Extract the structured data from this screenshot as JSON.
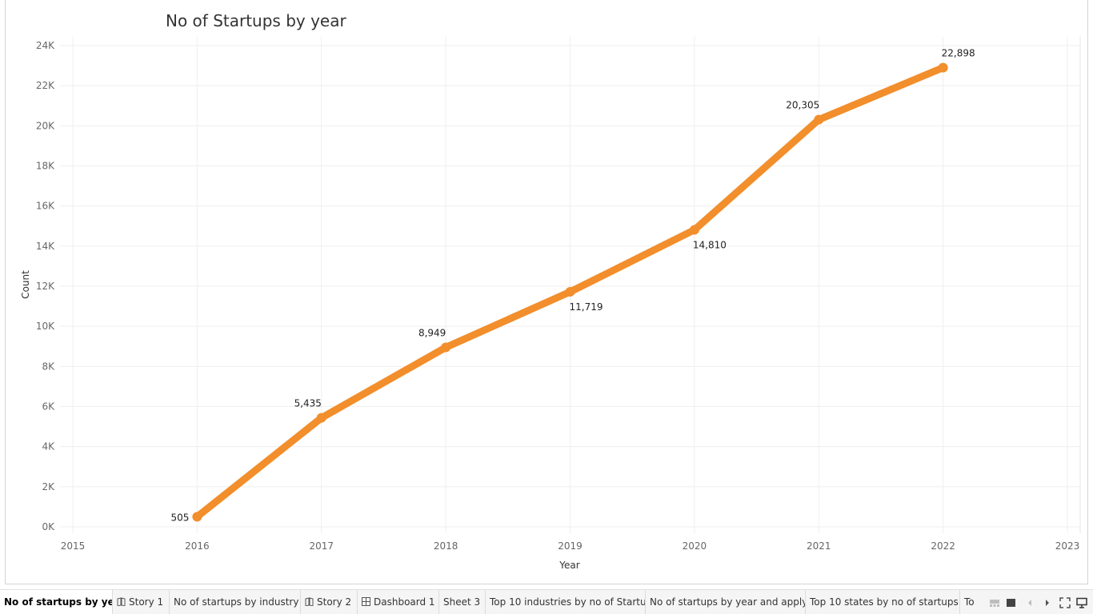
{
  "chart_data": {
    "type": "line",
    "title": "No of Startups by year",
    "xlabel": "Year",
    "ylabel": "Count",
    "x_ticks": [
      "2015",
      "2016",
      "2017",
      "2018",
      "2019",
      "2020",
      "2021",
      "2022",
      "2023"
    ],
    "xlim": [
      2015,
      2023
    ],
    "y_ticks": [
      "0K",
      "2K",
      "4K",
      "6K",
      "8K",
      "10K",
      "12K",
      "14K",
      "16K",
      "18K",
      "20K",
      "22K",
      "24K"
    ],
    "ylim": [
      0,
      24000
    ],
    "grid": true,
    "series": [
      {
        "color": "#f28e2b",
        "points": [
          {
            "x": 2016,
            "y": 505,
            "label": "505"
          },
          {
            "x": 2017,
            "y": 5435,
            "label": "5,435"
          },
          {
            "x": 2018,
            "y": 8949,
            "label": "8,949"
          },
          {
            "x": 2019,
            "y": 11719,
            "label": "11,719"
          },
          {
            "x": 2020,
            "y": 14810,
            "label": "14,810"
          },
          {
            "x": 2021,
            "y": 20305,
            "label": "20,305"
          },
          {
            "x": 2022,
            "y": 22898,
            "label": "22,898"
          }
        ]
      }
    ]
  },
  "tabs": [
    {
      "label": "No of startups by year",
      "icon": "",
      "active": true
    },
    {
      "label": "Story 1",
      "icon": "story-icon"
    },
    {
      "label": "No of startups by industry",
      "icon": ""
    },
    {
      "label": "Story 2",
      "icon": "story-icon"
    },
    {
      "label": "Dashboard 1",
      "icon": "dashboard-icon"
    },
    {
      "label": "Sheet 3",
      "icon": ""
    },
    {
      "label": "Top 10 industries by no of Startu...",
      "icon": ""
    },
    {
      "label": "No of startups by year and apply...",
      "icon": ""
    },
    {
      "label": "Top 10 states by no of startups",
      "icon": ""
    },
    {
      "label": "To",
      "icon": ""
    }
  ],
  "nav_controls": [
    "filmstrip-view-icon",
    "tabs-view-icon",
    "previous-tab-icon",
    "next-tab-icon",
    "fullscreen-icon",
    "presentation-mode-icon"
  ]
}
